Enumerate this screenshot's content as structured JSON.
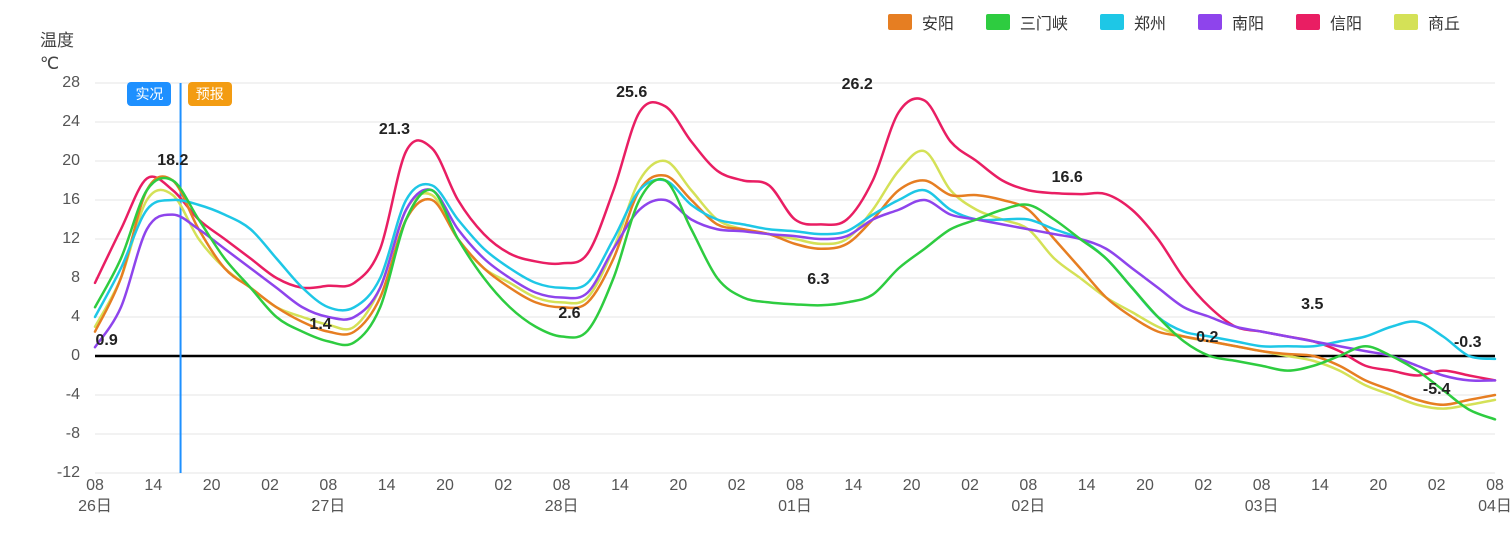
{
  "chart": {
    "type": "line",
    "y_title": "温度\n℃",
    "background_color": "#ffffff",
    "grid_color": "#e5e5e5",
    "zero_line_color": "#000000",
    "current_line_color": "#1e90ff",
    "xlim": [
      0,
      36
    ],
    "ylim": [
      -12,
      28
    ],
    "y_ticks": [
      -12,
      -8,
      -4,
      0,
      4,
      8,
      12,
      16,
      20,
      24,
      28
    ],
    "x_ticks": [
      {
        "pos": 0,
        "hour": "08",
        "day": "26日"
      },
      {
        "pos": 1,
        "hour": "14"
      },
      {
        "pos": 2,
        "hour": "20"
      },
      {
        "pos": 3,
        "hour": "02"
      },
      {
        "pos": 4,
        "hour": "08",
        "day": "27日"
      },
      {
        "pos": 5,
        "hour": "14"
      },
      {
        "pos": 6,
        "hour": "20"
      },
      {
        "pos": 7,
        "hour": "02"
      },
      {
        "pos": 8,
        "hour": "08",
        "day": "28日"
      },
      {
        "pos": 9,
        "hour": "14"
      },
      {
        "pos": 10,
        "hour": "20"
      },
      {
        "pos": 11,
        "hour": "02"
      },
      {
        "pos": 12,
        "hour": "08",
        "day": "01日"
      },
      {
        "pos": 13,
        "hour": "14"
      },
      {
        "pos": 14,
        "hour": "20"
      },
      {
        "pos": 15,
        "hour": "02"
      },
      {
        "pos": 16,
        "hour": "08",
        "day": "02日"
      },
      {
        "pos": 17,
        "hour": "14"
      },
      {
        "pos": 18,
        "hour": "20"
      },
      {
        "pos": 19,
        "hour": "02"
      },
      {
        "pos": 20,
        "hour": "08",
        "day": "03日"
      },
      {
        "pos": 21,
        "hour": "14"
      },
      {
        "pos": 22,
        "hour": "20"
      },
      {
        "pos": 23,
        "hour": "02"
      },
      {
        "pos": 24,
        "hour": "08",
        "day": "04日"
      }
    ],
    "x_scale_points": 36,
    "line_width": 2.5,
    "badges": [
      {
        "label": "实况",
        "color": "#1e90ff",
        "x_idx": 1.4,
        "y_val": 27
      },
      {
        "label": "预报",
        "color": "#f39c12",
        "x_idx": 2.95,
        "y_val": 27
      }
    ],
    "current_x_idx": 2.2,
    "legend": [
      {
        "label": "安阳",
        "color": "#e67e22"
      },
      {
        "label": "三门峡",
        "color": "#2ecc40"
      },
      {
        "label": "郑州",
        "color": "#1ec7e6"
      },
      {
        "label": "南阳",
        "color": "#8e44ec"
      },
      {
        "label": "信阳",
        "color": "#e91e63"
      },
      {
        "label": "商丘",
        "color": "#d4e157"
      }
    ],
    "series": [
      {
        "name": "信阳",
        "color": "#e91e63",
        "data": [
          7.5,
          13,
          18.2,
          17,
          14,
          12,
          10,
          8,
          7,
          7.2,
          7.5,
          11,
          21,
          21.3,
          16,
          12.5,
          10.5,
          9.7,
          9.5,
          10.5,
          17,
          25,
          25.6,
          22,
          19,
          18,
          17.5,
          14,
          13.5,
          14,
          18,
          25,
          26.2,
          22,
          20,
          18,
          17,
          16.7,
          16.6,
          16.6,
          15,
          12,
          8,
          5,
          3,
          2.5,
          2,
          1.5,
          0.5,
          -1,
          -1.5,
          -2,
          -1.5,
          -2,
          -2.5
        ]
      },
      {
        "name": "商丘",
        "color": "#d4e157",
        "data": [
          3,
          8,
          16,
          16.5,
          12,
          9,
          7,
          5,
          4,
          3.2,
          3,
          7,
          15,
          16.5,
          12,
          9,
          7.5,
          6,
          5.5,
          6,
          11,
          18,
          20,
          17,
          14,
          13,
          12.5,
          12,
          11.5,
          12,
          15,
          19,
          21,
          17,
          15,
          14,
          13,
          10,
          8,
          6,
          4.5,
          3,
          2,
          1.5,
          1,
          0.5,
          0,
          -0.5,
          -1.5,
          -3,
          -4,
          -5,
          -5.4,
          -5,
          -4.5
        ]
      },
      {
        "name": "安阳",
        "color": "#e67e22",
        "data": [
          2.5,
          8,
          17,
          18,
          13,
          9,
          7,
          5,
          3.5,
          2.5,
          2.5,
          6,
          14,
          16,
          12,
          9,
          7,
          5.5,
          5,
          5.5,
          10,
          17,
          18.5,
          16,
          13.5,
          13,
          12.5,
          11.5,
          11,
          11.5,
          14,
          17,
          18,
          16.5,
          16.5,
          16,
          15,
          12,
          9,
          6,
          4,
          2.5,
          2,
          1.5,
          1,
          0.5,
          0.2,
          0,
          -1,
          -2.5,
          -3.5,
          -4.5,
          -5,
          -4.5,
          -4
        ]
      },
      {
        "name": "郑州",
        "color": "#1ec7e6",
        "data": [
          4,
          9,
          15,
          16,
          15.5,
          14.5,
          13,
          10,
          7,
          5,
          5,
          8,
          16,
          17.5,
          14,
          11,
          9,
          7.5,
          7,
          7.5,
          12,
          17,
          18,
          15.5,
          14,
          13.5,
          13,
          12.8,
          12.5,
          12.8,
          14.5,
          16,
          17,
          15,
          14,
          14,
          14,
          13,
          12,
          10,
          7,
          4,
          2.5,
          2,
          1.5,
          1,
          1,
          1,
          1.5,
          2,
          3,
          3.5,
          2,
          0,
          -0.3
        ]
      },
      {
        "name": "南阳",
        "color": "#8e44ec",
        "data": [
          0.9,
          5,
          13,
          14.5,
          13,
          11,
          9,
          7,
          5,
          4,
          4,
          7,
          15,
          17,
          13,
          10,
          8,
          6.5,
          6,
          6.5,
          11,
          15,
          16,
          14,
          13,
          12.8,
          12.5,
          12.3,
          12,
          12.3,
          14,
          15,
          16,
          14.5,
          14,
          13.5,
          13,
          12.5,
          12,
          11,
          9,
          7,
          5,
          4,
          3,
          2.5,
          2,
          1.5,
          1,
          0.5,
          0,
          -1,
          -2,
          -2.5,
          -2.5
        ]
      },
      {
        "name": "三门峡",
        "color": "#2ecc40",
        "data": [
          5,
          10,
          17,
          18,
          14,
          10,
          7,
          4,
          2.5,
          1.5,
          1.4,
          5,
          14,
          17,
          12,
          8,
          5,
          3,
          2,
          2.6,
          8,
          16,
          18,
          13,
          8,
          6,
          5.5,
          5.3,
          5.2,
          5.5,
          6.3,
          9,
          11,
          13,
          14,
          15,
          15.5,
          14,
          12,
          10,
          7,
          4,
          1.5,
          0,
          -0.5,
          -1,
          -1.5,
          -1,
          0,
          1,
          0,
          -1.5,
          -3.5,
          -5.5,
          -6.5
        ]
      }
    ],
    "annotations": [
      {
        "text": "18.2",
        "x_idx": 2,
        "y_val": 20
      },
      {
        "text": "0.9",
        "x_idx": 0.3,
        "y_val": 1.5
      },
      {
        "text": "1.4",
        "x_idx": 5.8,
        "y_val": 3.2
      },
      {
        "text": "21.3",
        "x_idx": 7.7,
        "y_val": 23.2
      },
      {
        "text": "2.6",
        "x_idx": 12.2,
        "y_val": 4.3
      },
      {
        "text": "25.6",
        "x_idx": 13.8,
        "y_val": 27
      },
      {
        "text": "6.3",
        "x_idx": 18.6,
        "y_val": 7.8
      },
      {
        "text": "26.2",
        "x_idx": 19.6,
        "y_val": 27.8
      },
      {
        "text": "16.6",
        "x_idx": 25,
        "y_val": 18.3
      },
      {
        "text": "0.2",
        "x_idx": 28.6,
        "y_val": 1.8
      },
      {
        "text": "3.5",
        "x_idx": 31.3,
        "y_val": 5.2
      },
      {
        "text": "-0.3",
        "x_idx": 35.3,
        "y_val": 1.3
      },
      {
        "text": "-5.4",
        "x_idx": 34.5,
        "y_val": -3.5
      }
    ]
  }
}
